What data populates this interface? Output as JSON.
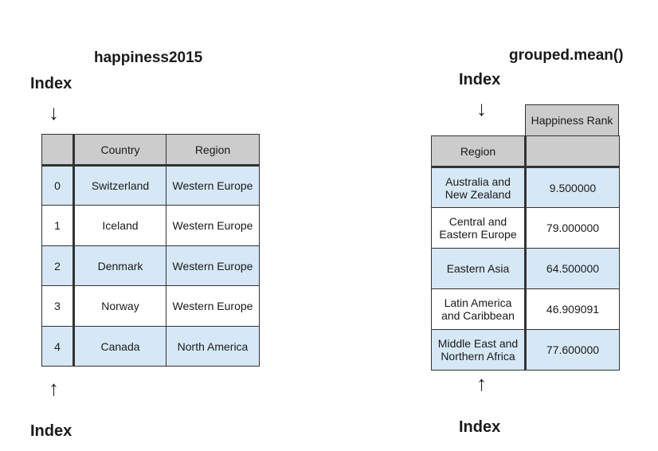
{
  "left": {
    "title": "happiness2015",
    "index_top": "Index",
    "index_bottom": "Index",
    "columns": [
      "",
      "Country",
      "Region"
    ],
    "rows": [
      [
        "0",
        "Switzerland",
        "Western Europe"
      ],
      [
        "1",
        "Iceland",
        "Western Europe"
      ],
      [
        "2",
        "Denmark",
        "Western Europe"
      ],
      [
        "3",
        "Norway",
        "Western Europe"
      ],
      [
        "4",
        "Canada",
        "North America"
      ]
    ]
  },
  "right": {
    "title": "grouped.mean()",
    "index_top": "Index",
    "index_bottom": "Index",
    "value_header": "Happiness Rank",
    "index_header": "Region",
    "rows": [
      [
        "Australia and New Zealand",
        "9.500000"
      ],
      [
        "Central and Eastern Europe",
        "79.000000"
      ],
      [
        "Eastern Asia",
        "64.500000"
      ],
      [
        "Latin America and Caribbean",
        "46.909091"
      ],
      [
        "Middle East and Northern Africa",
        "77.600000"
      ]
    ]
  },
  "colors": {
    "header": "#cccccc",
    "highlight": "#d6e8f6"
  }
}
